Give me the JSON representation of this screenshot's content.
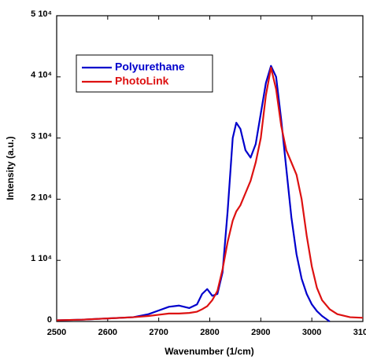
{
  "chart_data": {
    "type": "line",
    "xlabel": "Wavenumber (1/cm)",
    "ylabel": "Intensity (a.u.)",
    "x": [
      2500,
      2550,
      2600,
      2650,
      2680,
      2700,
      2720,
      2740,
      2760,
      2775,
      2785,
      2795,
      2805,
      2815,
      2825,
      2835,
      2845,
      2852,
      2860,
      2870,
      2880,
      2890,
      2900,
      2910,
      2920,
      2930,
      2940,
      2950,
      2960,
      2970,
      2980,
      2990,
      3000,
      3010,
      3020,
      3035,
      3050,
      3075,
      3100
    ],
    "series": [
      {
        "name": "Polyurethane",
        "color": "#0000cc",
        "values": [
          200,
          300,
          500,
          700,
          1200,
          1800,
          2400,
          2600,
          2200,
          2800,
          4500,
          5300,
          4200,
          4500,
          8000,
          18000,
          30000,
          32500,
          31500,
          28000,
          26800,
          29000,
          34000,
          39000,
          41800,
          40000,
          33000,
          25000,
          17000,
          11000,
          7000,
          4500,
          2800,
          1700,
          900,
          0,
          null,
          null,
          null
        ]
      },
      {
        "name": "PhotoLink",
        "color": "#dd1111",
        "values": [
          200,
          300,
          500,
          700,
          900,
          1100,
          1300,
          1300,
          1400,
          1600,
          2000,
          2500,
          3500,
          5000,
          8500,
          13000,
          16500,
          18000,
          19000,
          21000,
          23000,
          26000,
          30000,
          37000,
          41500,
          38000,
          32000,
          28000,
          26000,
          24000,
          20000,
          14000,
          9000,
          5500,
          3500,
          2000,
          1200,
          700,
          600
        ]
      }
    ],
    "xlim": [
      2500,
      3100
    ],
    "xticks": [
      2500,
      2600,
      2700,
      2800,
      2900,
      3000,
      3100
    ],
    "ylim": [
      0,
      50000
    ],
    "yticks": [
      0,
      {
        "value": 10000,
        "label": "1 10⁴"
      },
      {
        "value": 20000,
        "label": "2 10⁴"
      },
      {
        "value": 30000,
        "label": "3 10⁴"
      },
      {
        "value": 40000,
        "label": "4 10⁴"
      },
      {
        "value": 50000,
        "label": "5 10⁴"
      }
    ],
    "legend": "upper left"
  }
}
